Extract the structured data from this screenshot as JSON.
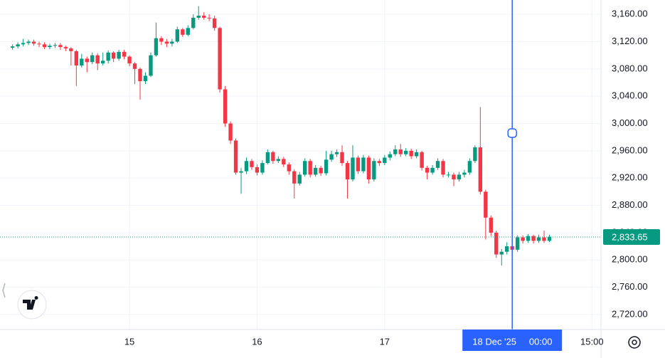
{
  "chart_data": {
    "type": "candlestick",
    "open": [
      3111,
      3113,
      3116,
      3118,
      3120,
      3117,
      3116,
      3112,
      3114,
      3115,
      3112,
      3110,
      3106,
      3085,
      3095,
      3090,
      3100,
      3088,
      3092,
      3104,
      3095,
      3105,
      3098,
      3088,
      3080,
      3062,
      3070,
      3100,
      3125,
      3120,
      3117,
      3120,
      3138,
      3130,
      3140,
      3155,
      3158,
      3155,
      3154,
      3140,
      3050,
      3000,
      2975,
      2928,
      2930,
      2945,
      2936,
      2928,
      2942,
      2958,
      2945,
      2948,
      2940,
      2930,
      2912,
      2925,
      2945,
      2925,
      2935,
      2927,
      2947,
      2955,
      2958,
      2942,
      2918,
      2950,
      2930,
      2950,
      2918,
      2945,
      2942,
      2950,
      2955,
      2962,
      2955,
      2960,
      2952,
      2958,
      2935,
      2928,
      2935,
      2945,
      2925,
      2925,
      2918,
      2925,
      2928,
      2945,
      2965,
      2900,
      2862,
      2840,
      2808,
      2812,
      2820,
      2815,
      2833,
      2828,
      2835,
      2828,
      2833,
      2828
    ],
    "high": [
      3116,
      3119,
      3124,
      3123,
      3123,
      3120,
      3119,
      3117,
      3118,
      3118,
      3114,
      3112,
      3108,
      3102,
      3098,
      3104,
      3103,
      3104,
      3107,
      3106,
      3108,
      3108,
      3100,
      3090,
      3082,
      3075,
      3104,
      3148,
      3128,
      3124,
      3124,
      3142,
      3140,
      3144,
      3160,
      3172,
      3163,
      3160,
      3158,
      3142,
      3055,
      3003,
      2978,
      2935,
      2950,
      2948,
      2940,
      2946,
      2962,
      2960,
      2952,
      2951,
      2943,
      2933,
      2929,
      2949,
      2948,
      2939,
      2938,
      2960,
      2960,
      2962,
      2968,
      2945,
      2968,
      2953,
      2954,
      2953,
      2949,
      2948,
      2954,
      2959,
      2968,
      2970,
      2964,
      2963,
      2962,
      2960,
      2938,
      2939,
      2949,
      2948,
      2929,
      2928,
      2929,
      2932,
      2949,
      2968,
      3024,
      2903,
      2865,
      2843,
      2816,
      2826,
      2830,
      2836,
      2836,
      2838,
      2837,
      2837,
      2843,
      2837
    ],
    "low": [
      3108,
      3110,
      3113,
      3115,
      3114,
      3112,
      3109,
      3109,
      3111,
      3108,
      3106,
      3085,
      3055,
      3082,
      3075,
      3087,
      3078,
      3085,
      3088,
      3090,
      3092,
      3094,
      3084,
      3058,
      3035,
      3058,
      3068,
      3098,
      3115,
      3112,
      3113,
      3118,
      3127,
      3128,
      3138,
      3152,
      3152,
      3150,
      3136,
      3045,
      2995,
      2970,
      2925,
      2897,
      2926,
      2932,
      2924,
      2925,
      2940,
      2941,
      2942,
      2936,
      2925,
      2890,
      2909,
      2922,
      2921,
      2922,
      2923,
      2924,
      2944,
      2951,
      2938,
      2890,
      2915,
      2926,
      2927,
      2912,
      2915,
      2938,
      2939,
      2946,
      2952,
      2951,
      2952,
      2948,
      2949,
      2931,
      2918,
      2925,
      2932,
      2921,
      2921,
      2908,
      2915,
      2921,
      2925,
      2942,
      2896,
      2830,
      2835,
      2803,
      2792,
      2808,
      2810,
      2812,
      2824,
      2825,
      2824,
      2825,
      2825,
      2826
    ],
    "close": [
      3113,
      3116,
      3118,
      3120,
      3117,
      3116,
      3112,
      3114,
      3115,
      3112,
      3110,
      3106,
      3085,
      3095,
      3090,
      3100,
      3088,
      3092,
      3104,
      3095,
      3105,
      3098,
      3088,
      3080,
      3062,
      3070,
      3100,
      3125,
      3120,
      3117,
      3120,
      3138,
      3130,
      3140,
      3155,
      3158,
      3155,
      3154,
      3140,
      3050,
      3000,
      2975,
      2928,
      2930,
      2945,
      2936,
      2928,
      2942,
      2958,
      2945,
      2948,
      2940,
      2930,
      2912,
      2925,
      2945,
      2925,
      2935,
      2927,
      2947,
      2955,
      2958,
      2942,
      2918,
      2950,
      2930,
      2950,
      2918,
      2945,
      2942,
      2950,
      2955,
      2962,
      2955,
      2960,
      2952,
      2958,
      2935,
      2928,
      2935,
      2945,
      2925,
      2925,
      2918,
      2925,
      2928,
      2945,
      2965,
      2900,
      2862,
      2840,
      2808,
      2812,
      2820,
      2815,
      2833,
      2828,
      2835,
      2828,
      2833,
      2828,
      2833.65
    ],
    "up_color": "#089981",
    "down_color": "#f23645",
    "xlim": [
      -2.36,
      110.7
    ],
    "xticks": [
      {
        "value": 22,
        "label": "15"
      },
      {
        "value": 46,
        "label": "16"
      },
      {
        "value": 70,
        "label": "17"
      },
      {
        "value": 109,
        "label": "15:00"
      }
    ],
    "ylim": [
      2698,
      3181
    ],
    "yticks": [
      {
        "value": 2720,
        "label": "2,720.00"
      },
      {
        "value": 2760,
        "label": "2,760.00"
      },
      {
        "value": 2800,
        "label": "2,800.00"
      },
      {
        "value": 2840,
        "label": "2,840.00"
      },
      {
        "value": 2880,
        "label": "2,880.00"
      },
      {
        "value": 2920,
        "label": "2,920.00"
      },
      {
        "value": 2960,
        "label": "2,960.00"
      },
      {
        "value": 3000,
        "label": "3,000.00"
      },
      {
        "value": 3040,
        "label": "3,040.00"
      },
      {
        "value": 3080,
        "label": "3,080.00"
      },
      {
        "value": 3120,
        "label": "3,120.00"
      },
      {
        "value": 3160,
        "label": "3,160.00"
      }
    ],
    "grid": true,
    "last_price": {
      "value": 2833.65,
      "label": "2,833.65"
    },
    "crosshair": {
      "x": 94,
      "date_label": "18 Dec '25",
      "time_label": "00:00",
      "color": "#2962ff"
    }
  }
}
